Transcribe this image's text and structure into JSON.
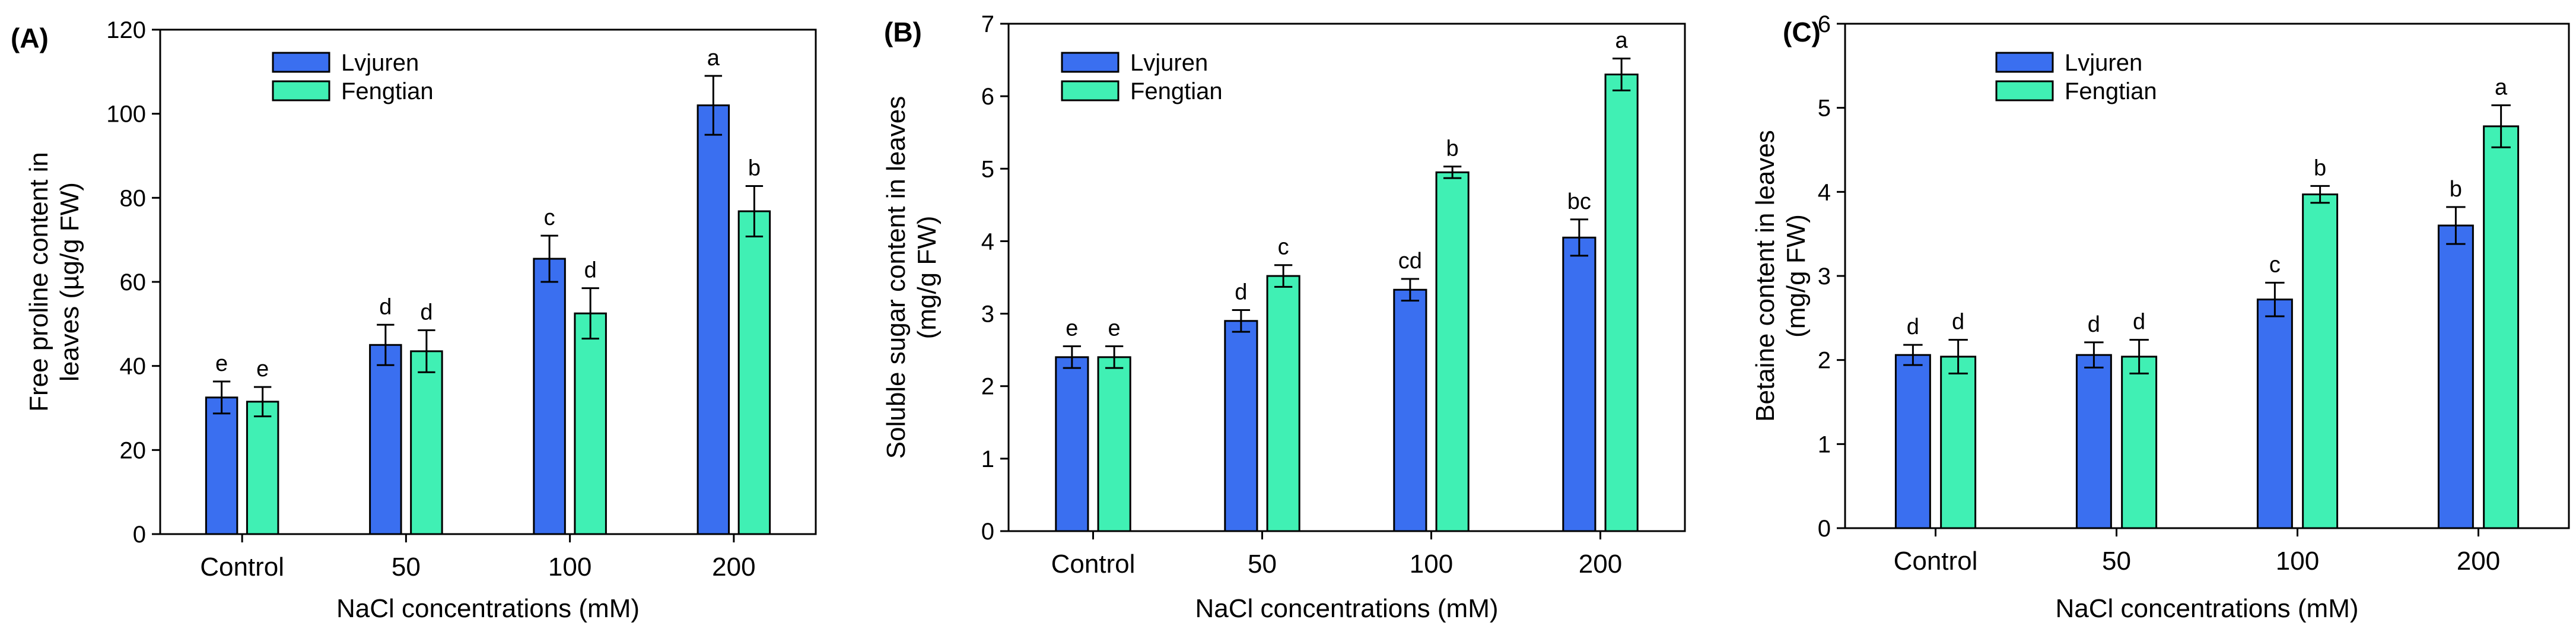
{
  "colors": {
    "Lvjuren": "#3a6ff0",
    "Fengtian": "#40f0b4"
  },
  "chart_data": [
    {
      "type": "bar",
      "panel": "(A)",
      "categories": [
        "Control",
        "50",
        "100",
        "200"
      ],
      "xlabel": "NaCl concentrations (mM)",
      "ylabel_lines": [
        "Free proline content in",
        "leaves (µg/g FW)"
      ],
      "ylim": [
        0,
        120
      ],
      "yticks": [
        0,
        20,
        40,
        60,
        80,
        100,
        120
      ],
      "legend": [
        "Lvjuren",
        "Fengtian"
      ],
      "series": [
        {
          "name": "Lvjuren",
          "values": [
            32.5,
            45.0,
            65.5,
            102.0
          ],
          "errors": [
            3.8,
            4.8,
            5.5,
            7.0
          ],
          "labels": [
            "e",
            "d",
            "c",
            "a"
          ]
        },
        {
          "name": "Fengtian",
          "values": [
            31.5,
            43.5,
            52.5,
            76.8
          ],
          "errors": [
            3.5,
            5.0,
            6.0,
            6.0
          ],
          "labels": [
            "e",
            "d",
            "d",
            "b"
          ]
        }
      ]
    },
    {
      "type": "bar",
      "panel": "(B)",
      "categories": [
        "Control",
        "50",
        "100",
        "200"
      ],
      "xlabel": "NaCl concentrations (mM)",
      "ylabel_lines": [
        "Soluble sugar content in leaves",
        "(mg/g FW)"
      ],
      "ylim": [
        0,
        7
      ],
      "yticks": [
        0,
        1,
        2,
        3,
        4,
        5,
        6,
        7
      ],
      "legend": [
        "Lvjuren",
        "Fengtian"
      ],
      "series": [
        {
          "name": "Lvjuren",
          "values": [
            2.4,
            2.9,
            3.33,
            4.05
          ],
          "errors": [
            0.15,
            0.15,
            0.15,
            0.25
          ],
          "labels": [
            "e",
            "d",
            "cd",
            "bc"
          ]
        },
        {
          "name": "Fengtian",
          "values": [
            2.4,
            3.52,
            4.95,
            6.3
          ],
          "errors": [
            0.15,
            0.15,
            0.08,
            0.22
          ],
          "labels": [
            "e",
            "c",
            "b",
            "a"
          ]
        }
      ]
    },
    {
      "type": "bar",
      "panel": "(C)",
      "categories": [
        "Control",
        "50",
        "100",
        "200"
      ],
      "xlabel": "NaCl concentrations (mM)",
      "ylabel_lines": [
        "Betaine content in leaves",
        "(mg/g FW)"
      ],
      "ylim": [
        0,
        6
      ],
      "yticks": [
        0,
        1,
        2,
        3,
        4,
        5,
        6
      ],
      "legend": [
        "Lvjuren",
        "Fengtian"
      ],
      "series": [
        {
          "name": "Lvjuren",
          "values": [
            2.06,
            2.06,
            2.72,
            3.6
          ],
          "errors": [
            0.12,
            0.15,
            0.2,
            0.22
          ],
          "labels": [
            "d",
            "d",
            "c",
            "b"
          ]
        },
        {
          "name": "Fengtian",
          "values": [
            2.04,
            2.04,
            3.97,
            4.78
          ],
          "errors": [
            0.2,
            0.2,
            0.1,
            0.25
          ],
          "labels": [
            "d",
            "d",
            "b",
            "a"
          ]
        }
      ]
    }
  ]
}
